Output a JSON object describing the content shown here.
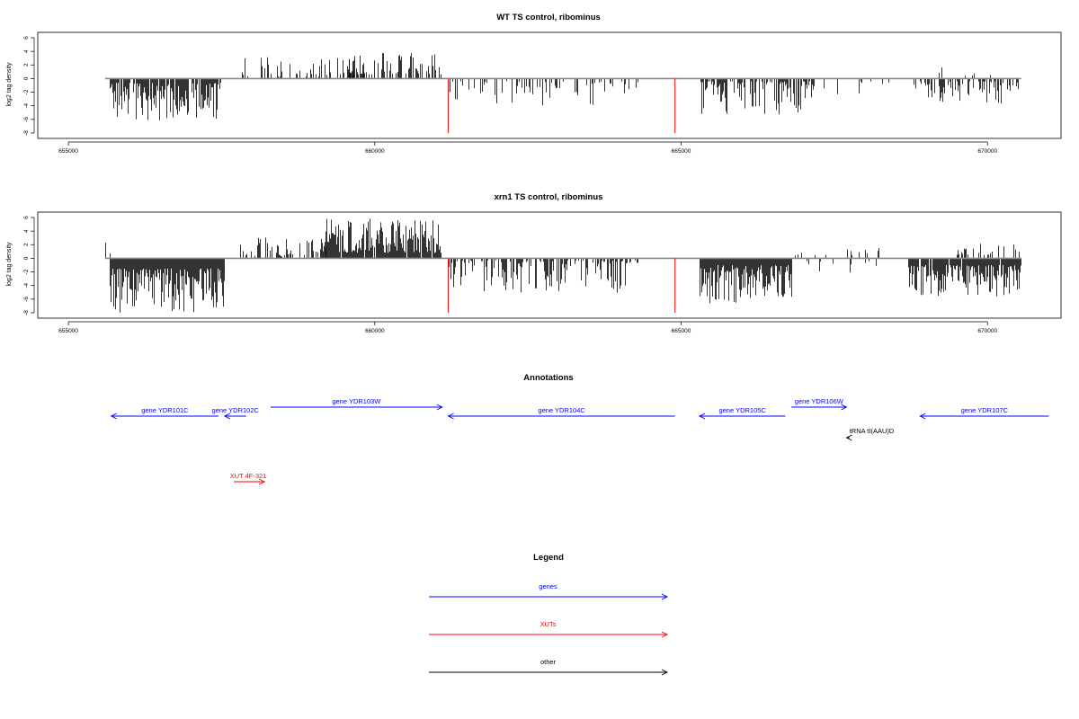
{
  "chart_data": [
    {
      "type": "bar",
      "title": "WT TS control, ribominus",
      "ylabel": "log2 tag density",
      "xlim": [
        654500,
        671200
      ],
      "ylim": [
        -8,
        6
      ],
      "xticks": [
        655000,
        660000,
        665000,
        670000
      ],
      "xtick_labels": [
        "655000",
        "660000",
        "665000",
        "670000"
      ],
      "yticks": [
        6,
        4,
        2,
        0,
        -2,
        -4,
        -6,
        -8
      ],
      "ytick_labels": [
        "6",
        "4",
        "2",
        "0",
        "-2",
        "-4",
        "-6",
        "-8"
      ],
      "grid": false,
      "baseline_range": [
        655600,
        670550
      ],
      "red_markers": [
        {
          "x": 661200,
          "value": -8
        },
        {
          "x": 664900,
          "value": -8
        }
      ],
      "signal_segments": [
        {
          "start": 655600,
          "end": 655620,
          "sign": 1,
          "min": 0.3,
          "max": 3.3,
          "density": 0.1
        },
        {
          "start": 655680,
          "end": 657480,
          "sign": -1,
          "min": 0.6,
          "max": 6.3,
          "density": 0.85
        },
        {
          "start": 657800,
          "end": 660000,
          "sign": 1,
          "min": 0.3,
          "max": 3.3,
          "density": 0.22
        },
        {
          "start": 659400,
          "end": 661100,
          "sign": 1,
          "min": 0.6,
          "max": 3.8,
          "density": 0.55
        },
        {
          "start": 661200,
          "end": 664300,
          "sign": -1,
          "min": 0.4,
          "max": 4.0,
          "density": 0.25
        },
        {
          "start": 662400,
          "end": 662500,
          "sign": 1,
          "min": 1.5,
          "max": 2.6,
          "density": 0.05
        },
        {
          "start": 665300,
          "end": 667200,
          "sign": -1,
          "min": 0.4,
          "max": 5.3,
          "density": 0.55
        },
        {
          "start": 667200,
          "end": 668400,
          "sign": -1,
          "min": 0.4,
          "max": 3.2,
          "density": 0.08
        },
        {
          "start": 668500,
          "end": 668600,
          "sign": 1,
          "min": 0.5,
          "max": 1.6,
          "density": 0.05
        },
        {
          "start": 668800,
          "end": 670500,
          "sign": -1,
          "min": 0.4,
          "max": 3.7,
          "density": 0.45
        },
        {
          "start": 669200,
          "end": 670400,
          "sign": 1,
          "min": 0.4,
          "max": 1.7,
          "density": 0.08
        }
      ]
    },
    {
      "type": "bar",
      "title": "xrn1 TS control, ribominus",
      "ylabel": "log2 tag density",
      "xlim": [
        654500,
        671200
      ],
      "ylim": [
        -8,
        6
      ],
      "xticks": [
        655000,
        660000,
        665000,
        670000
      ],
      "xtick_labels": [
        "655000",
        "660000",
        "665000",
        "670000"
      ],
      "yticks": [
        6,
        4,
        2,
        0,
        -2,
        -4,
        -6,
        -8
      ],
      "ytick_labels": [
        "6",
        "4",
        "2",
        "0",
        "-2",
        "-4",
        "-6",
        "-8"
      ],
      "grid": false,
      "baseline_range": [
        655600,
        670550
      ],
      "red_markers": [
        {
          "x": 661200,
          "value": -8
        },
        {
          "x": 664900,
          "value": -8
        }
      ],
      "signal_segments": [
        {
          "start": 655600,
          "end": 655680,
          "sign": 1,
          "min": 0.5,
          "max": 3.1,
          "density": 0.5
        },
        {
          "start": 655680,
          "end": 657550,
          "sign": -1,
          "min": 1.5,
          "max": 8.0,
          "density": 1.0
        },
        {
          "start": 657800,
          "end": 659200,
          "sign": 1,
          "min": 0.3,
          "max": 3.1,
          "density": 0.4
        },
        {
          "start": 659200,
          "end": 661100,
          "sign": 1,
          "min": 0.8,
          "max": 5.9,
          "density": 0.9
        },
        {
          "start": 661200,
          "end": 664300,
          "sign": -1,
          "min": 0.3,
          "max": 5.2,
          "density": 0.55
        },
        {
          "start": 665300,
          "end": 666800,
          "sign": -1,
          "min": 1.0,
          "max": 6.6,
          "density": 1.0
        },
        {
          "start": 666800,
          "end": 668300,
          "sign": 1,
          "min": 0.4,
          "max": 2.7,
          "density": 0.2
        },
        {
          "start": 666800,
          "end": 668300,
          "sign": -1,
          "min": 0.4,
          "max": 2.2,
          "density": 0.15
        },
        {
          "start": 668700,
          "end": 670550,
          "sign": -1,
          "min": 1.0,
          "max": 5.6,
          "density": 0.95
        },
        {
          "start": 669400,
          "end": 670550,
          "sign": 1,
          "min": 0.5,
          "max": 2.3,
          "density": 0.3
        }
      ]
    }
  ],
  "annotations": {
    "title": "Annotations",
    "xlim": [
      654500,
      671200
    ],
    "items": [
      {
        "label": "gene YDR101C",
        "color": "#0000ff",
        "start": 655700,
        "end": 657450,
        "strand": "-",
        "row": 1
      },
      {
        "label": "gene YDR102C",
        "color": "#0000ff",
        "start": 657550,
        "end": 657900,
        "strand": "-",
        "row": 1
      },
      {
        "label": "gene YDR103W",
        "color": "#0000ff",
        "start": 658300,
        "end": 661100,
        "strand": "+",
        "row": 0
      },
      {
        "label": "gene YDR104C",
        "color": "#0000ff",
        "start": 661200,
        "end": 664900,
        "strand": "-",
        "row": 1
      },
      {
        "label": "gene YDR105C",
        "color": "#0000ff",
        "start": 665300,
        "end": 666700,
        "strand": "-",
        "row": 1
      },
      {
        "label": "gene YDR106W",
        "color": "#0000ff",
        "start": 666800,
        "end": 667700,
        "strand": "+",
        "row": 0
      },
      {
        "label": "gene YDR107C",
        "color": "#0000ff",
        "start": 668900,
        "end": 671000,
        "strand": "-",
        "row": 1
      },
      {
        "label": "tRNA tI(AAU)D",
        "color": "#000000",
        "start": 667700,
        "end": 667750,
        "strand": "-",
        "row": 2
      },
      {
        "label": "XUT 4F-321",
        "color": "#ff0000",
        "start": 657700,
        "end": 658200,
        "strand": "+",
        "row": 3
      }
    ]
  },
  "legend": {
    "title": "Legend",
    "items": [
      {
        "label": "genes",
        "color": "#0000ff"
      },
      {
        "label": "XUTs",
        "color": "#ff0000"
      },
      {
        "label": "other",
        "color": "#000000"
      }
    ]
  }
}
